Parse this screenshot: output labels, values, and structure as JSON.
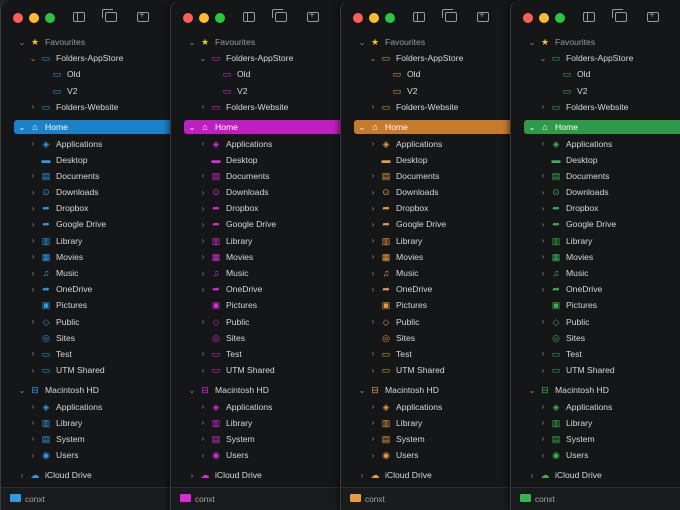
{
  "sidebar": {
    "favourites_label": "Favourites",
    "items": {
      "folders_appstore": "Folders-AppStore",
      "old": "Old",
      "v2": "V2",
      "folders_website": "Folders-Website",
      "home": "Home",
      "applications": "Applications",
      "desktop": "Desktop",
      "documents": "Documents",
      "downloads": "Downloads",
      "dropbox": "Dropbox",
      "google_drive": "Google Drive",
      "library": "Library",
      "movies": "Movies",
      "music": "Music",
      "onedrive": "OneDrive",
      "pictures": "Pictures",
      "public": "Public",
      "sites": "Sites",
      "test": "Test",
      "utm_shared": "UTM Shared",
      "macintosh_hd": "Macintosh HD",
      "hd_applications": "Applications",
      "hd_library": "Library",
      "hd_system": "System",
      "hd_users": "Users",
      "icloud_drive": "iCloud Drive"
    }
  },
  "footer": {
    "path_label": "conxt"
  },
  "themes": [
    {
      "name": "blue",
      "accent": "#1a82c8",
      "icon": "#2f9be4"
    },
    {
      "name": "magenta",
      "accent": "#c01fc0",
      "icon": "#db2bd9"
    },
    {
      "name": "orange",
      "accent": "#c87a2c",
      "icon": "#e89a3c"
    },
    {
      "name": "green",
      "accent": "#2f9a45",
      "icon": "#39b24f"
    }
  ],
  "colors": {
    "star": "#f5c518",
    "badge_red": "#e0443e"
  }
}
